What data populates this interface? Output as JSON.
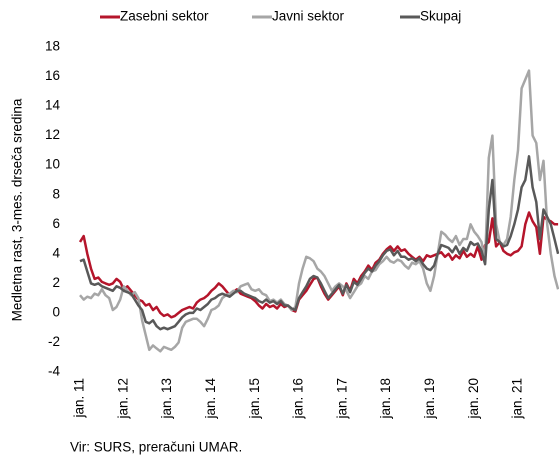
{
  "chart_data": {
    "type": "line",
    "ylabel": "Medletna rast, 3-mes. drseča sredina",
    "source": "Vir: SURS, preračuni UMAR.",
    "categories": [
      "jan. 11",
      null,
      null,
      null,
      null,
      null,
      null,
      null,
      null,
      null,
      null,
      null,
      "jan. 12",
      null,
      null,
      null,
      null,
      null,
      null,
      null,
      null,
      null,
      null,
      null,
      "jan. 13",
      null,
      null,
      null,
      null,
      null,
      null,
      null,
      null,
      null,
      null,
      null,
      "jan. 14",
      null,
      null,
      null,
      null,
      null,
      null,
      null,
      null,
      null,
      null,
      null,
      "jan. 15",
      null,
      null,
      null,
      null,
      null,
      null,
      null,
      null,
      null,
      null,
      null,
      "jan. 16",
      null,
      null,
      null,
      null,
      null,
      null,
      null,
      null,
      null,
      null,
      null,
      "jan. 17",
      null,
      null,
      null,
      null,
      null,
      null,
      null,
      null,
      null,
      null,
      null,
      "jan. 18",
      null,
      null,
      null,
      null,
      null,
      null,
      null,
      null,
      null,
      null,
      null,
      "jan. 19",
      null,
      null,
      null,
      null,
      null,
      null,
      null,
      null,
      null,
      null,
      null,
      "jan. 20",
      null,
      null,
      null,
      null,
      null,
      null,
      null,
      null,
      null,
      null,
      null,
      "jan. 21",
      null,
      null,
      null,
      null,
      null,
      null,
      null,
      null,
      null,
      null,
      null
    ],
    "series": [
      {
        "name": "Zasebni sektor",
        "color": "#b5152b",
        "values": [
          4.8,
          5.2,
          4.0,
          3.0,
          2.3,
          2.4,
          2.1,
          2.0,
          1.9,
          2.0,
          2.3,
          2.1,
          1.6,
          1.8,
          1.5,
          1.2,
          0.9,
          0.8,
          0.5,
          0.6,
          0.2,
          0.4,
          0.0,
          -0.2,
          -0.1,
          -0.3,
          -0.2,
          0.0,
          0.2,
          0.3,
          0.4,
          0.3,
          0.7,
          0.9,
          1.0,
          1.2,
          1.5,
          1.7,
          2.0,
          1.8,
          1.5,
          1.2,
          1.4,
          1.6,
          1.3,
          1.2,
          1.1,
          1.0,
          0.8,
          0.5,
          0.3,
          0.6,
          0.4,
          0.5,
          0.3,
          0.6,
          0.4,
          0.5,
          0.2,
          0.1,
          0.9,
          1.2,
          1.5,
          1.9,
          2.3,
          2.4,
          1.8,
          1.3,
          0.9,
          1.2,
          1.5,
          1.8,
          1.2,
          2.0,
          1.5,
          2.3,
          2.0,
          2.5,
          2.8,
          3.2,
          2.9,
          3.4,
          3.6,
          4.0,
          4.3,
          4.5,
          4.2,
          4.5,
          4.2,
          4.3,
          4.0,
          3.8,
          3.6,
          3.8,
          3.5,
          3.9,
          3.8,
          3.9,
          4.0,
          4.1,
          3.8,
          4.0,
          3.6,
          3.9,
          3.7,
          4.2,
          3.8,
          4.0,
          3.8,
          4.5,
          3.6,
          4.6,
          4.8,
          6.4,
          4.5,
          4.8,
          4.2,
          4.0,
          3.9,
          4.1,
          4.2,
          4.5,
          6.0,
          6.8,
          6.2,
          5.8,
          4.0,
          6.5,
          6.3,
          6.2,
          6.0,
          6.0
        ]
      },
      {
        "name": "Javni sektor",
        "color": "#a6a6a6",
        "values": [
          1.2,
          0.9,
          1.1,
          1.0,
          1.3,
          1.2,
          1.6,
          1.2,
          1.0,
          0.2,
          0.4,
          0.9,
          1.8,
          1.5,
          1.2,
          1.4,
          1.0,
          -0.5,
          -1.5,
          -2.5,
          -2.2,
          -2.4,
          -2.6,
          -2.3,
          -2.4,
          -2.5,
          -2.3,
          -2.0,
          -1.0,
          -0.6,
          -0.5,
          -0.4,
          -0.4,
          -0.6,
          -0.9,
          -0.4,
          0.2,
          0.3,
          0.5,
          1.0,
          1.2,
          1.3,
          1.5,
          1.4,
          1.8,
          1.9,
          2.0,
          1.6,
          1.5,
          1.6,
          1.3,
          1.2,
          0.8,
          0.9,
          0.7,
          0.9,
          0.6,
          0.5,
          0.2,
          0.4,
          2.0,
          3.0,
          3.8,
          3.7,
          3.5,
          3.0,
          2.8,
          2.5,
          2.0,
          1.5,
          1.8,
          2.0,
          1.8,
          1.5,
          1.0,
          1.4,
          1.8,
          2.0,
          2.5,
          2.3,
          2.8,
          2.9,
          3.3,
          3.5,
          3.8,
          3.5,
          3.4,
          3.6,
          3.5,
          3.2,
          3.0,
          3.4,
          3.3,
          3.5,
          3.0,
          2.0,
          1.5,
          2.5,
          4.0,
          5.5,
          5.3,
          5.0,
          4.8,
          5.2,
          4.6,
          5.0,
          5.0,
          6.0,
          5.5,
          5.2,
          4.8,
          3.5,
          10.5,
          12.0,
          6.0,
          4.8,
          4.6,
          5.0,
          6.5,
          9.0,
          11.0,
          15.2,
          15.8,
          16.4,
          12.0,
          11.5,
          9.0,
          10.3,
          6.0,
          4.0,
          2.5,
          1.6
        ]
      },
      {
        "name": "Skupaj",
        "color": "#595959",
        "values": [
          3.5,
          3.6,
          2.8,
          2.0,
          1.9,
          2.0,
          1.8,
          1.7,
          1.6,
          1.5,
          1.8,
          1.7,
          1.5,
          1.4,
          1.3,
          0.9,
          0.5,
          0.2,
          -0.6,
          -0.7,
          -0.5,
          -0.9,
          -1.1,
          -1.0,
          -1.1,
          -1.0,
          -0.9,
          -0.6,
          -0.3,
          -0.1,
          0.0,
          0.0,
          0.3,
          0.2,
          0.4,
          0.6,
          0.9,
          1.0,
          1.2,
          1.3,
          1.2,
          1.1,
          1.3,
          1.5,
          1.5,
          1.3,
          1.2,
          1.1,
          1.0,
          0.8,
          0.7,
          0.9,
          0.7,
          0.8,
          0.6,
          0.8,
          0.5,
          0.5,
          0.3,
          0.2,
          1.0,
          1.4,
          1.8,
          2.3,
          2.5,
          2.4,
          2.0,
          1.5,
          1.0,
          1.3,
          1.6,
          1.9,
          1.3,
          1.9,
          1.4,
          2.1,
          1.9,
          2.3,
          2.7,
          3.0,
          2.8,
          3.2,
          3.5,
          3.9,
          4.2,
          4.3,
          3.9,
          4.2,
          3.8,
          3.8,
          3.6,
          3.7,
          3.5,
          3.7,
          3.3,
          3.0,
          2.9,
          3.2,
          4.0,
          4.6,
          4.5,
          4.4,
          4.1,
          4.5,
          4.0,
          4.4,
          4.2,
          4.8,
          4.6,
          4.7,
          4.2,
          3.3,
          7.0,
          9.0,
          5.0,
          4.8,
          4.5,
          4.6,
          5.2,
          6.0,
          7.0,
          8.5,
          9.0,
          10.6,
          8.5,
          7.5,
          5.0,
          7.0,
          6.5,
          6.0,
          5.0,
          4.0
        ]
      }
    ],
    "ylim": [
      -4,
      18
    ],
    "yticks": [
      -4,
      -2,
      0,
      2,
      4,
      6,
      8,
      10,
      12,
      14,
      16,
      18
    ],
    "grid": false,
    "legend": "top"
  }
}
